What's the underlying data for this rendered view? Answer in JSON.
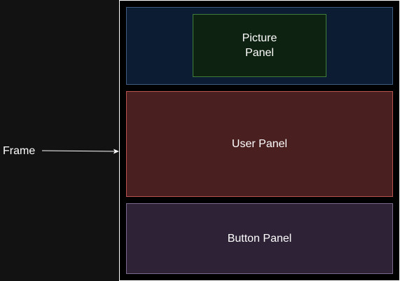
{
  "diagram": {
    "frame_label": "Frame",
    "panels": {
      "picture": "Picture\nPanel",
      "user": "User Panel",
      "button": "Button Panel"
    }
  },
  "colors": {
    "background": "#121212",
    "frame_border": "#ffffff",
    "picture_area_fill": "#0c1d33",
    "picture_panel_fill": "#0e2211",
    "user_panel_fill": "#4a1f1f",
    "button_panel_fill": "#2e2236"
  }
}
